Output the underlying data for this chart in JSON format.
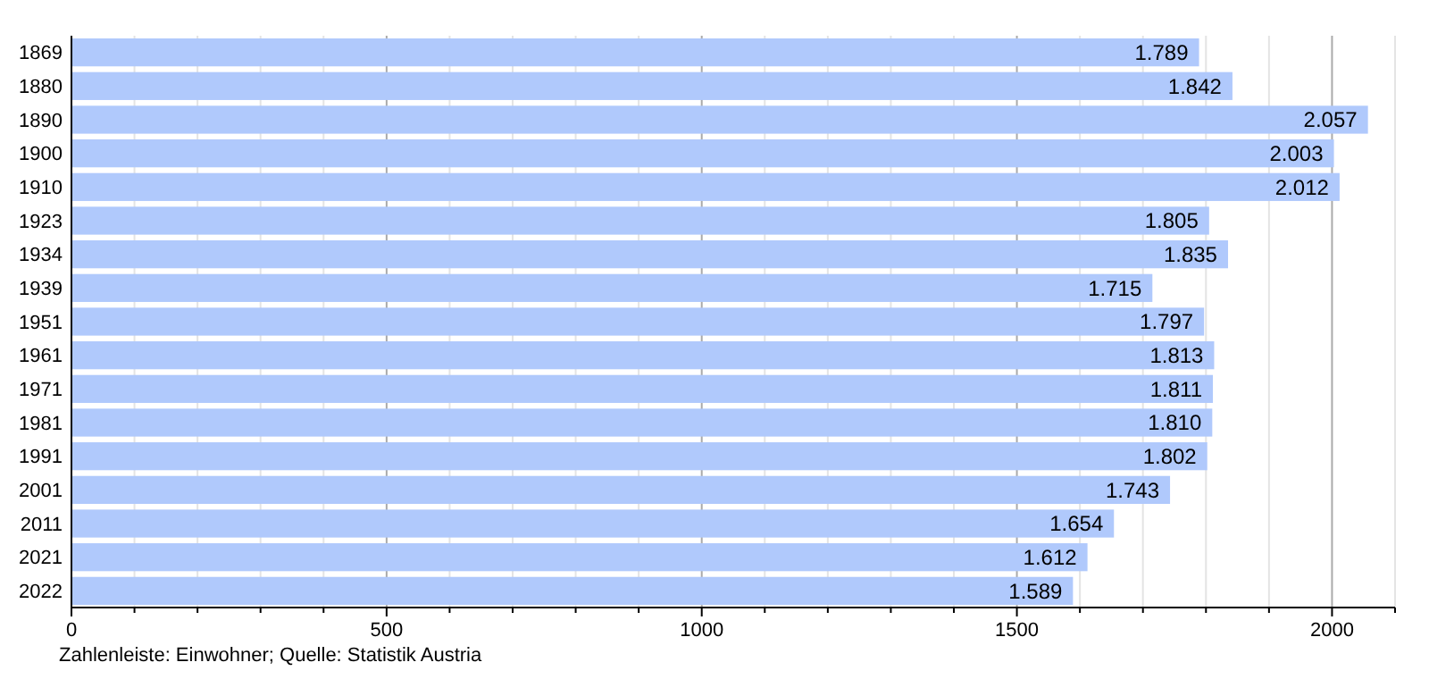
{
  "chart_data": {
    "type": "bar",
    "orientation": "horizontal",
    "categories": [
      "1869",
      "1880",
      "1890",
      "1900",
      "1910",
      "1923",
      "1934",
      "1939",
      "1951",
      "1961",
      "1971",
      "1981",
      "1991",
      "2001",
      "2011",
      "2021",
      "2022"
    ],
    "values": [
      1789,
      1842,
      2057,
      2003,
      2012,
      1805,
      1835,
      1715,
      1797,
      1813,
      1811,
      1810,
      1802,
      1743,
      1654,
      1612,
      1589
    ],
    "value_labels": [
      "1.789",
      "1.842",
      "2.057",
      "2.003",
      "2.012",
      "1.805",
      "1.835",
      "1.715",
      "1.797",
      "1.813",
      "1.811",
      "1.810",
      "1.802",
      "1.743",
      "1.654",
      "1.612",
      "1.589"
    ],
    "color": "#b0c9fc",
    "xlim": [
      0,
      2100
    ],
    "xticks": [
      0,
      {
        "value": 100,
        "label": null
      },
      {
        "value": 200,
        "label": null
      },
      {
        "value": 300,
        "label": null
      },
      {
        "value": 400,
        "label": null
      },
      500,
      {
        "value": 600,
        "label": null
      },
      {
        "value": 700,
        "label": null
      },
      {
        "value": 800,
        "label": null
      },
      {
        "value": 900,
        "label": null
      },
      1000,
      {
        "value": 1100,
        "label": null
      },
      {
        "value": 1200,
        "label": null
      },
      {
        "value": 1300,
        "label": null
      },
      {
        "value": 1400,
        "label": null
      },
      1500,
      {
        "value": 1600,
        "label": null
      },
      {
        "value": 1700,
        "label": null
      },
      {
        "value": 1800,
        "label": null
      },
      {
        "value": 1900,
        "label": null
      },
      2000,
      {
        "value": 2100,
        "label": null
      }
    ],
    "grid": "x",
    "annotations": [
      "Zahlenleiste: Einwohner; Quelle: Statistik Austria"
    ]
  }
}
